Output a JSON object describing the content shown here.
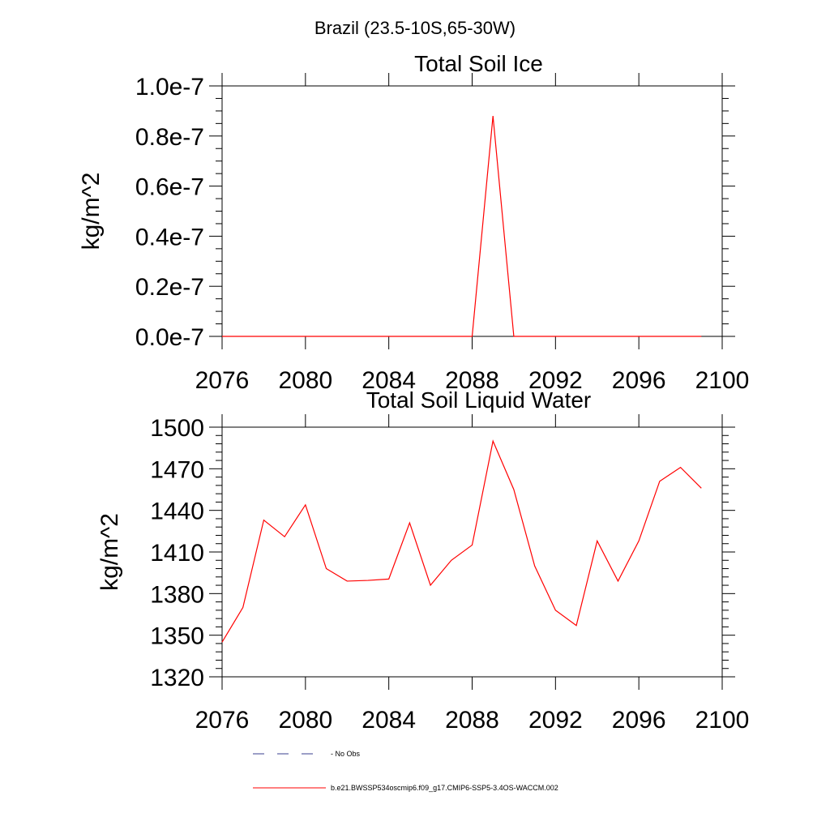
{
  "figure": {
    "title": "Brazil (23.5-10S,65-30W)"
  },
  "legend": {
    "placement": "bottom-center",
    "entries": [
      {
        "label": "No Obs",
        "display": "- No Obs",
        "color": "#3a3f8f",
        "style": "dashed"
      },
      {
        "label": "b.e21.BWSSP534oscmip6.f09_g17.CMIP6-SSP5-3.4OS-WACCM.002",
        "display": "b.e21.BWSSP534oscmip6.f09_g17.CMIP6-SSP5-3.4OS-WACCM.002",
        "color": "#ff0000",
        "style": "solid"
      }
    ]
  },
  "chart_data": [
    {
      "type": "line",
      "title": "Total Soil Ice",
      "xlabel": "",
      "ylabel": "kg/m^2",
      "xlim": [
        2076,
        2100
      ],
      "ylim": [
        0,
        1e-07
      ],
      "xticks": [
        2076,
        2080,
        2084,
        2088,
        2092,
        2096,
        2100
      ],
      "xtick_labels": [
        "2076",
        "2080",
        "2084",
        "2088",
        "2092",
        "2096",
        "2100"
      ],
      "yticks": [
        0,
        2e-08,
        4e-08,
        6e-08,
        8e-08,
        1e-07
      ],
      "ytick_labels": [
        "0.0e-7",
        "0.2e-7",
        "0.4e-7",
        "0.6e-7",
        "0.8e-7",
        "1.0e-7"
      ],
      "yminor_step": 5e-09,
      "series": [
        {
          "name": "b.e21.BWSSP534oscmip6.f09_g17.CMIP6-SSP5-3.4OS-WACCM.002",
          "color": "#ff0000",
          "x": [
            2076,
            2077,
            2078,
            2079,
            2080,
            2081,
            2082,
            2083,
            2084,
            2085,
            2086,
            2087,
            2088,
            2089,
            2090,
            2091,
            2092,
            2093,
            2094,
            2095,
            2096,
            2097,
            2098,
            2099
          ],
          "y": [
            0,
            0,
            0,
            0,
            0,
            0,
            0,
            0,
            0,
            0,
            0,
            0,
            0,
            8.8e-08,
            0,
            0,
            0,
            0,
            0,
            0,
            0,
            0,
            0,
            0
          ]
        }
      ]
    },
    {
      "type": "line",
      "title": "Total Soil Liquid Water",
      "xlabel": "",
      "ylabel": "kg/m^2",
      "xlim": [
        2076,
        2100
      ],
      "ylim": [
        1320,
        1500
      ],
      "xticks": [
        2076,
        2080,
        2084,
        2088,
        2092,
        2096,
        2100
      ],
      "xtick_labels": [
        "2076",
        "2080",
        "2084",
        "2088",
        "2092",
        "2096",
        "2100"
      ],
      "yticks": [
        1320,
        1350,
        1380,
        1410,
        1440,
        1470,
        1500
      ],
      "ytick_labels": [
        "1320",
        "1350",
        "1380",
        "1410",
        "1440",
        "1470",
        "1500"
      ],
      "yminor_step": 6,
      "series": [
        {
          "name": "b.e21.BWSSP534oscmip6.f09_g17.CMIP6-SSP5-3.4OS-WACCM.002",
          "color": "#ff0000",
          "x": [
            2076,
            2077,
            2078,
            2079,
            2080,
            2081,
            2082,
            2083,
            2084,
            2085,
            2086,
            2087,
            2088,
            2089,
            2090,
            2091,
            2092,
            2093,
            2094,
            2095,
            2096,
            2097,
            2098,
            2099
          ],
          "y": [
            1345,
            1370,
            1433,
            1421,
            1444,
            1398,
            1389,
            1389.5,
            1390.5,
            1431,
            1386,
            1404,
            1415,
            1490,
            1455,
            1400,
            1368,
            1357,
            1418,
            1389,
            1418,
            1461,
            1471,
            1456
          ]
        }
      ]
    }
  ]
}
